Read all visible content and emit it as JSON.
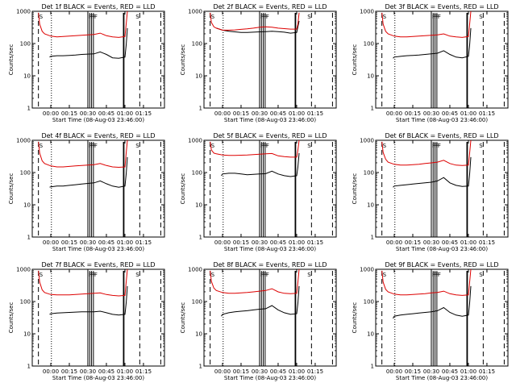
{
  "figure": {
    "background": "#ffffff",
    "events_color": "#000000",
    "lld_color": "#dd0000"
  },
  "chart_data": [
    {
      "type": "line",
      "panel": "Det 1f",
      "title": "Det 1f BLACK = Events, RED = LLD",
      "xlabel": "Start Time (08-Aug-03 23:46:00)",
      "ylabel": "Counts/sec",
      "xticks": [
        "00:00",
        "00:15",
        "00:30",
        "00:45",
        "01:00",
        "01:15"
      ],
      "yticks": [
        "1",
        "10",
        "100",
        "1000"
      ],
      "yscale": "log",
      "ylim": [
        1,
        1000
      ],
      "flags": [
        "S",
        "F",
        "F",
        "F",
        "F",
        "S"
      ],
      "series": [
        {
          "key": "events",
          "x": [
            -1,
            0,
            5,
            10,
            15,
            20,
            25,
            30,
            35,
            40,
            45,
            50,
            55,
            60,
            61,
            62
          ],
          "y": [
            38,
            40,
            42,
            42,
            43,
            44,
            46,
            47,
            48,
            55,
            46,
            36,
            35,
            38,
            90,
            300
          ]
        },
        {
          "key": "lld",
          "x": [
            -10,
            -9,
            -7,
            -5,
            0,
            5,
            10,
            15,
            20,
            25,
            30,
            35,
            40,
            45,
            50,
            55,
            60,
            61,
            62
          ],
          "y": [
            900,
            400,
            240,
            200,
            170,
            160,
            165,
            170,
            175,
            180,
            185,
            190,
            210,
            175,
            160,
            155,
            165,
            400,
            1000
          ]
        }
      ]
    },
    {
      "type": "line",
      "panel": "Det 2f",
      "title": "Det 2f BLACK = Events, RED = LLD",
      "xlabel": "Start Time (08-Aug-03 23:46:00)",
      "ylabel": "Counts/sec",
      "xticks": [
        "00:00",
        "00:15",
        "00:30",
        "00:45",
        "01:00",
        "01:15"
      ],
      "yticks": [
        "1",
        "10",
        "100",
        "1000"
      ],
      "yscale": "log",
      "ylim": [
        1,
        1000
      ],
      "flags": [
        "S",
        "F",
        "F",
        "F",
        "F",
        "S"
      ],
      "series": [
        {
          "key": "events",
          "x": [
            -5,
            0,
            5,
            10,
            15,
            20,
            25,
            30,
            35,
            40,
            45,
            50,
            55,
            60,
            62
          ],
          "y": [
            300,
            260,
            240,
            230,
            220,
            220,
            225,
            230,
            235,
            240,
            235,
            225,
            210,
            220,
            500
          ]
        },
        {
          "key": "lld",
          "x": [
            -10,
            -9,
            -7,
            -5,
            0,
            5,
            10,
            15,
            20,
            25,
            30,
            35,
            40,
            45,
            50,
            55,
            60,
            61,
            62
          ],
          "y": [
            900,
            450,
            330,
            300,
            260,
            260,
            265,
            275,
            285,
            300,
            320,
            330,
            320,
            300,
            290,
            280,
            280,
            400,
            900
          ]
        }
      ]
    },
    {
      "type": "line",
      "panel": "Det 3f",
      "title": "Det 3f BLACK = Events, RED = LLD",
      "xlabel": "Start Time (08-Aug-03 23:46:00)",
      "ylabel": "Counts/sec",
      "xticks": [
        "00:00",
        "00:15",
        "00:30",
        "00:45",
        "01:00",
        "01:15"
      ],
      "yticks": [
        "1",
        "10",
        "100",
        "1000"
      ],
      "yscale": "log",
      "ylim": [
        1,
        1000
      ],
      "flags": [
        "S",
        "F",
        "F",
        "F",
        "F",
        "S"
      ],
      "series": [
        {
          "key": "events",
          "x": [
            -1,
            0,
            5,
            10,
            15,
            20,
            25,
            30,
            35,
            40,
            45,
            50,
            55,
            60,
            61,
            62
          ],
          "y": [
            35,
            38,
            40,
            42,
            43,
            44,
            46,
            48,
            50,
            60,
            46,
            38,
            36,
            40,
            90,
            300
          ]
        },
        {
          "key": "lld",
          "x": [
            -10,
            -9,
            -7,
            -5,
            0,
            5,
            10,
            15,
            20,
            25,
            30,
            35,
            40,
            45,
            50,
            55,
            60,
            61,
            62
          ],
          "y": [
            900,
            400,
            240,
            200,
            170,
            160,
            160,
            165,
            170,
            175,
            180,
            185,
            200,
            170,
            160,
            155,
            165,
            400,
            1000
          ]
        }
      ]
    },
    {
      "type": "line",
      "panel": "Det 4f",
      "title": "Det 4f BLACK = Events, RED = LLD",
      "xlabel": "Start Time (08-Aug-03 23:46:00)",
      "ylabel": "Counts/sec",
      "xticks": [
        "00:00",
        "00:15",
        "00:30",
        "00:45",
        "01:00",
        "01:15"
      ],
      "yticks": [
        "1",
        "10",
        "100",
        "1000"
      ],
      "yscale": "log",
      "ylim": [
        1,
        1000
      ],
      "flags": [
        "S",
        "F",
        "F",
        "F",
        "F",
        "S"
      ],
      "series": [
        {
          "key": "events",
          "x": [
            -1,
            0,
            5,
            10,
            15,
            20,
            25,
            30,
            35,
            40,
            45,
            50,
            55,
            60,
            61,
            62
          ],
          "y": [
            35,
            36,
            38,
            38,
            40,
            42,
            44,
            46,
            48,
            55,
            45,
            38,
            35,
            38,
            90,
            300
          ]
        },
        {
          "key": "lld",
          "x": [
            -10,
            -9,
            -7,
            -5,
            0,
            5,
            10,
            15,
            20,
            25,
            30,
            35,
            40,
            45,
            50,
            55,
            60,
            61,
            62
          ],
          "y": [
            900,
            400,
            230,
            190,
            160,
            150,
            150,
            155,
            160,
            165,
            170,
            175,
            190,
            165,
            150,
            145,
            150,
            400,
            1000
          ]
        }
      ]
    },
    {
      "type": "line",
      "panel": "Det 5f",
      "title": "Det 5f BLACK = Events, RED = LLD",
      "xlabel": "Start Time (08-Aug-03 23:46:00)",
      "ylabel": "Counts/sec",
      "xticks": [
        "00:00",
        "00:15",
        "00:30",
        "00:45",
        "01:00",
        "01:15"
      ],
      "yticks": [
        "1",
        "10",
        "100",
        "1000"
      ],
      "yscale": "log",
      "ylim": [
        1,
        1000
      ],
      "flags": [
        "S",
        "F",
        "F",
        "F",
        "F",
        "S"
      ],
      "series": [
        {
          "key": "events",
          "x": [
            -1,
            0,
            5,
            10,
            15,
            20,
            25,
            30,
            35,
            40,
            45,
            50,
            55,
            60,
            61,
            62
          ],
          "y": [
            80,
            90,
            95,
            95,
            90,
            85,
            88,
            90,
            92,
            110,
            90,
            80,
            75,
            80,
            150,
            400
          ]
        },
        {
          "key": "lld",
          "x": [
            -10,
            -9,
            -7,
            -5,
            0,
            5,
            10,
            15,
            20,
            25,
            30,
            35,
            40,
            45,
            50,
            55,
            60,
            61,
            62
          ],
          "y": [
            900,
            500,
            400,
            380,
            350,
            340,
            340,
            345,
            350,
            360,
            370,
            380,
            390,
            330,
            310,
            300,
            300,
            500,
            1000
          ]
        }
      ]
    },
    {
      "type": "line",
      "panel": "Det 6f",
      "title": "Det 6f BLACK = Events, RED = LLD",
      "xlabel": "Start Time (08-Aug-03 23:46:00)",
      "ylabel": "Counts/sec",
      "xticks": [
        "00:00",
        "00:15",
        "00:30",
        "00:45",
        "01:00",
        "01:15"
      ],
      "yticks": [
        "1",
        "10",
        "100",
        "1000"
      ],
      "yscale": "log",
      "ylim": [
        1,
        1000
      ],
      "flags": [
        "S",
        "F",
        "F",
        "F",
        "F",
        "S"
      ],
      "series": [
        {
          "key": "events",
          "x": [
            -1,
            0,
            5,
            10,
            15,
            20,
            25,
            30,
            35,
            40,
            45,
            50,
            55,
            60,
            61,
            62
          ],
          "y": [
            35,
            38,
            40,
            42,
            44,
            46,
            48,
            50,
            55,
            70,
            48,
            40,
            37,
            38,
            90,
            300
          ]
        },
        {
          "key": "lld",
          "x": [
            -10,
            -9,
            -7,
            -5,
            0,
            5,
            10,
            15,
            20,
            25,
            30,
            35,
            40,
            45,
            50,
            55,
            60,
            61,
            62
          ],
          "y": [
            900,
            420,
            260,
            210,
            180,
            170,
            170,
            175,
            180,
            190,
            200,
            210,
            240,
            190,
            170,
            165,
            170,
            400,
            1000
          ]
        }
      ]
    },
    {
      "type": "line",
      "panel": "Det 7f",
      "title": "Det 7f BLACK = Events, RED = LLD",
      "xlabel": "Start Time (08-Aug-03 23:46:00)",
      "ylabel": "Counts/sec",
      "xticks": [
        "00:00",
        "00:15",
        "00:30",
        "00:45",
        "01:00",
        "01:15"
      ],
      "yticks": [
        "1",
        "10",
        "100",
        "1000"
      ],
      "yscale": "log",
      "ylim": [
        1,
        1000
      ],
      "flags": [
        "S",
        "F",
        "F",
        "F",
        "F",
        "S"
      ],
      "series": [
        {
          "key": "events",
          "x": [
            -1,
            0,
            5,
            10,
            15,
            20,
            25,
            30,
            35,
            40,
            45,
            50,
            55,
            60,
            61,
            62
          ],
          "y": [
            40,
            42,
            44,
            45,
            46,
            47,
            48,
            48,
            48,
            50,
            45,
            40,
            38,
            40,
            90,
            300
          ]
        },
        {
          "key": "lld",
          "x": [
            -10,
            -9,
            -7,
            -5,
            0,
            5,
            10,
            15,
            20,
            25,
            30,
            35,
            40,
            45,
            50,
            55,
            60,
            61,
            62
          ],
          "y": [
            900,
            400,
            230,
            190,
            165,
            160,
            160,
            160,
            165,
            170,
            175,
            180,
            185,
            165,
            155,
            150,
            155,
            400,
            1000
          ]
        }
      ]
    },
    {
      "type": "line",
      "panel": "Det 8f",
      "title": "Det 8f BLACK = Events, RED = LLD",
      "xlabel": "Start Time (08-Aug-03 23:46:00)",
      "ylabel": "Counts/sec",
      "xticks": [
        "00:00",
        "00:15",
        "00:30",
        "00:45",
        "01:00",
        "01:15"
      ],
      "yticks": [
        "1",
        "10",
        "100",
        "1000"
      ],
      "yscale": "log",
      "ylim": [
        1,
        1000
      ],
      "flags": [
        "S",
        "F",
        "F",
        "F",
        "F",
        "S"
      ],
      "series": [
        {
          "key": "events",
          "x": [
            -1,
            0,
            5,
            10,
            15,
            20,
            25,
            30,
            35,
            40,
            45,
            50,
            55,
            60,
            61,
            62
          ],
          "y": [
            35,
            40,
            45,
            48,
            50,
            52,
            55,
            58,
            60,
            75,
            55,
            45,
            40,
            42,
            90,
            300
          ]
        },
        {
          "key": "lld",
          "x": [
            -10,
            -9,
            -7,
            -5,
            0,
            5,
            10,
            15,
            20,
            25,
            30,
            35,
            40,
            45,
            50,
            55,
            60,
            61,
            62
          ],
          "y": [
            900,
            420,
            260,
            220,
            190,
            180,
            180,
            185,
            190,
            200,
            210,
            220,
            250,
            200,
            180,
            175,
            180,
            400,
            1000
          ]
        }
      ]
    },
    {
      "type": "line",
      "panel": "Det 9f",
      "title": "Det 9f BLACK = Events, RED = LLD",
      "xlabel": "Start Time (08-Aug-03 23:46:00)",
      "ylabel": "Counts/sec",
      "xticks": [
        "00:00",
        "00:15",
        "00:30",
        "00:45",
        "01:00",
        "01:15"
      ],
      "yticks": [
        "1",
        "10",
        "100",
        "1000"
      ],
      "yscale": "log",
      "ylim": [
        1,
        1000
      ],
      "flags": [
        "S",
        "F",
        "F",
        "F",
        "F",
        "S"
      ],
      "series": [
        {
          "key": "events",
          "x": [
            -1,
            0,
            5,
            10,
            15,
            20,
            25,
            30,
            35,
            40,
            45,
            50,
            55,
            60,
            61,
            62
          ],
          "y": [
            30,
            35,
            38,
            40,
            42,
            44,
            46,
            48,
            52,
            65,
            46,
            38,
            35,
            38,
            90,
            300
          ]
        },
        {
          "key": "lld",
          "x": [
            -10,
            -9,
            -7,
            -5,
            0,
            5,
            10,
            15,
            20,
            25,
            30,
            35,
            40,
            45,
            50,
            55,
            60,
            61,
            62
          ],
          "y": [
            900,
            400,
            240,
            200,
            170,
            160,
            160,
            165,
            170,
            175,
            185,
            190,
            210,
            175,
            160,
            155,
            160,
            400,
            1000
          ]
        }
      ]
    }
  ]
}
